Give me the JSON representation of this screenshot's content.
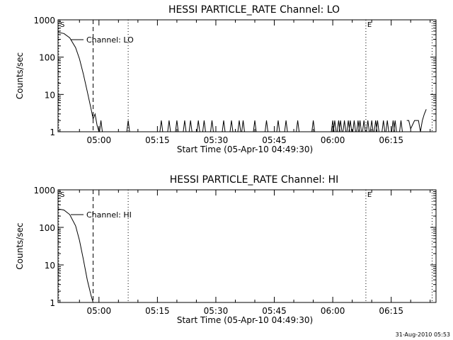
{
  "footer_date": "31-Aug-2010 05:53",
  "chart_data": [
    {
      "type": "line",
      "title": "HESSI PARTICLE_RATE Channel: LO",
      "xlabel": "Start Time (05-Apr-10 04:49:30)",
      "ylabel": "Counts/sec",
      "yscale": "log",
      "ylim": [
        1,
        1000
      ],
      "xlim": [
        "04:49:30",
        "06:26:30"
      ],
      "x_units": "time HH:MM:SS",
      "x_ticks": [
        "05:00",
        "05:15",
        "05:30",
        "05:45",
        "06:00",
        "06:15"
      ],
      "y_ticks": [
        "1",
        "10",
        "100",
        "1000"
      ],
      "legend": "Channel: LO",
      "markers": [
        {
          "label": "S",
          "time": "04:49:30",
          "style": "dotted"
        },
        {
          "label": "",
          "time": "04:58:30",
          "style": "dashed"
        },
        {
          "label": "",
          "time": "05:07:30",
          "style": "dotted"
        },
        {
          "label": "E",
          "time": "06:08:30",
          "style": "dotted"
        },
        {
          "label": "",
          "time": "06:25:30",
          "style": "dotted"
        }
      ],
      "series": [
        {
          "name": "Channel: LO",
          "x": [
            "04:49:30",
            "04:51:00",
            "04:52:30",
            "04:54:00",
            "04:55:00",
            "04:56:00",
            "04:57:00",
            "04:58:00",
            "04:58:30",
            "04:59:00",
            "04:59:30",
            "05:00:00"
          ],
          "y": [
            460,
            430,
            330,
            180,
            90,
            35,
            12,
            4,
            2.2,
            3,
            1.5,
            1
          ]
        },
        {
          "name": "",
          "spikes": [
            "05:00:30",
            "05:07:30",
            "05:16:00",
            "05:18:00",
            "05:20:00",
            "05:22:00",
            "05:23:30",
            "05:25:30",
            "05:27:00",
            "05:29:00",
            "05:32:00",
            "05:34:00",
            "05:36:00",
            "05:37:00",
            "05:40:00",
            "05:43:00",
            "05:46:00",
            "05:48:00",
            "05:51:00",
            "05:55:00",
            "06:00:00",
            "06:00:30",
            "06:01:30",
            "06:02:00",
            "06:03:00",
            "06:04:00",
            "06:04:30",
            "06:05:30",
            "06:06:30",
            "06:07:00",
            "06:08:00",
            "06:09:00",
            "06:10:00",
            "06:11:00",
            "06:11:30",
            "06:13:00",
            "06:14:00",
            "06:15:30",
            "06:16:00",
            "06:17:30"
          ],
          "x": [
            "06:19:00",
            "06:19:30",
            "06:20:00",
            "06:21:00",
            "06:22:00",
            "06:22:30",
            "06:23:00",
            "06:23:30",
            "06:24:00"
          ],
          "y": [
            2,
            2,
            1.2,
            2,
            2,
            1,
            2,
            3,
            4
          ]
        }
      ]
    },
    {
      "type": "line",
      "title": "HESSI PARTICLE_RATE Channel: HI",
      "xlabel": "Start Time (05-Apr-10 04:49:30)",
      "ylabel": "Counts/sec",
      "yscale": "log",
      "ylim": [
        1,
        1000
      ],
      "xlim": [
        "04:49:30",
        "06:26:30"
      ],
      "x_units": "time HH:MM:SS",
      "x_ticks": [
        "05:00",
        "05:15",
        "05:30",
        "05:45",
        "06:00",
        "06:15"
      ],
      "y_ticks": [
        "1",
        "10",
        "100",
        "1000"
      ],
      "legend": "Channel: HI",
      "markers": [
        {
          "label": "S",
          "time": "04:49:30",
          "style": "dotted"
        },
        {
          "label": "",
          "time": "04:58:30",
          "style": "dashed"
        },
        {
          "label": "",
          "time": "05:07:30",
          "style": "dotted"
        },
        {
          "label": "E",
          "time": "06:08:30",
          "style": "dotted"
        },
        {
          "label": "",
          "time": "06:25:30",
          "style": "dotted"
        }
      ],
      "series": [
        {
          "name": "Channel: HI",
          "x": [
            "04:49:30",
            "04:51:00",
            "04:52:30",
            "04:54:00",
            "04:55:00",
            "04:56:00",
            "04:57:00",
            "04:58:00",
            "04:58:30"
          ],
          "y": [
            310,
            290,
            220,
            110,
            45,
            14,
            4,
            1.5,
            1
          ]
        }
      ]
    }
  ]
}
